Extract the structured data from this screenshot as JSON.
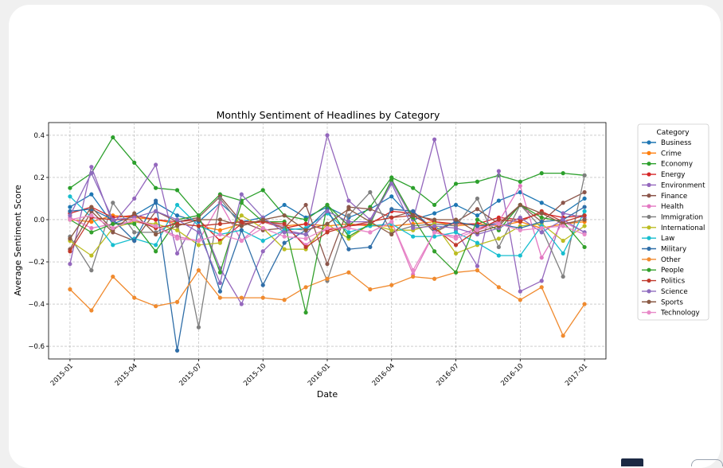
{
  "chart_data": {
    "type": "line",
    "title": "Monthly Sentiment of Headlines by Category",
    "xlabel": "Date",
    "ylabel": "Average Sentiment Score",
    "ylim": [
      -0.66,
      0.46
    ],
    "xlim": [
      "2014-12",
      "2017-02"
    ],
    "yticks": [
      -0.6,
      -0.4,
      -0.2,
      0.0,
      0.2,
      0.4
    ],
    "ytick_labels": [
      "−0.6",
      "−0.4",
      "−0.2",
      "0.0",
      "0.2",
      "0.4"
    ],
    "xticks": [
      "2015-01",
      "2015-04",
      "2015-07",
      "2015-10",
      "2016-01",
      "2016-04",
      "2016-07",
      "2016-10",
      "2017-01"
    ],
    "grid": true,
    "legend": {
      "title": "Category",
      "placement": "right"
    },
    "x": [
      "2015-01",
      "2015-02",
      "2015-03",
      "2015-04",
      "2015-05",
      "2015-06",
      "2015-07",
      "2015-08",
      "2015-09",
      "2015-10",
      "2015-11",
      "2015-12",
      "2016-01",
      "2016-02",
      "2016-03",
      "2016-04",
      "2016-05",
      "2016-06",
      "2016-07",
      "2016-08",
      "2016-09",
      "2016-10",
      "2016-11",
      "2016-12",
      "2017-01"
    ],
    "series": [
      {
        "name": "Business",
        "color": "#1f77b4",
        "values": [
          0.06,
          0.12,
          -0.02,
          0.02,
          0.08,
          0.02,
          -0.01,
          0.08,
          -0.01,
          0.01,
          0.07,
          0.01,
          0.06,
          0.01,
          0.05,
          0.11,
          0.0,
          0.03,
          0.07,
          0.02,
          0.09,
          0.13,
          0.08,
          0.03,
          0.1
        ]
      },
      {
        "name": "Crime",
        "color": "#ff7f0e",
        "values": [
          0.0,
          -0.01,
          0.02,
          0.01,
          0.0,
          -0.02,
          -0.03,
          -0.05,
          -0.02,
          -0.01,
          -0.03,
          -0.02,
          -0.03,
          -0.02,
          -0.03,
          -0.03,
          -0.02,
          -0.01,
          -0.03,
          -0.02,
          -0.03,
          -0.01,
          -0.04,
          -0.02,
          -0.01
        ]
      },
      {
        "name": "Economy",
        "color": "#2ca02c",
        "values": [
          0.15,
          0.22,
          0.39,
          0.27,
          0.15,
          0.14,
          0.02,
          0.12,
          0.09,
          0.14,
          0.02,
          0.0,
          0.07,
          -0.03,
          0.06,
          0.2,
          0.15,
          0.07,
          0.17,
          0.18,
          0.21,
          0.18,
          0.22,
          0.22,
          0.21
        ]
      },
      {
        "name": "Energy",
        "color": "#d62728",
        "values": [
          0.03,
          0.06,
          0.01,
          0.02,
          0.0,
          -0.01,
          0.0,
          -0.1,
          -0.02,
          -0.01,
          -0.04,
          -0.02,
          -0.05,
          -0.03,
          -0.02,
          0.04,
          0.03,
          -0.01,
          -0.02,
          -0.02,
          0.01,
          0.0,
          0.03,
          0.01,
          0.02
        ]
      },
      {
        "name": "Environment",
        "color": "#9467bd",
        "values": [
          -0.21,
          0.25,
          -0.02,
          0.1,
          0.26,
          -0.16,
          0.02,
          -0.23,
          -0.4,
          -0.15,
          -0.05,
          -0.07,
          0.4,
          0.09,
          0.0,
          0.18,
          0.0,
          0.38,
          -0.05,
          -0.22,
          0.23,
          -0.34,
          -0.29,
          0.03,
          0.01
        ]
      },
      {
        "name": "Finance",
        "color": "#8c564b",
        "values": [
          -0.14,
          0.04,
          -0.06,
          -0.1,
          0.04,
          -0.01,
          0.01,
          0.11,
          -0.01,
          -0.05,
          -0.04,
          0.07,
          -0.21,
          0.06,
          0.05,
          0.01,
          0.04,
          -0.06,
          -0.01,
          0.05,
          -0.02,
          0.07,
          -0.01,
          0.08,
          0.13
        ]
      },
      {
        "name": "Health",
        "color": "#e377c2",
        "values": [
          0.01,
          -0.04,
          -0.02,
          -0.01,
          -0.03,
          -0.08,
          -0.1,
          0.08,
          -0.1,
          -0.01,
          -0.03,
          -0.12,
          -0.04,
          -0.04,
          -0.06,
          -0.01,
          -0.26,
          -0.06,
          -0.08,
          -0.04,
          -0.01,
          0.16,
          -0.18,
          -0.01,
          -0.06
        ]
      },
      {
        "name": "Immigration",
        "color": "#7f7f7f",
        "values": [
          -0.08,
          -0.24,
          0.08,
          -0.06,
          -0.06,
          -0.01,
          -0.51,
          0.1,
          -0.03,
          0.0,
          -0.04,
          -0.05,
          -0.29,
          0.02,
          0.13,
          -0.06,
          -0.03,
          -0.02,
          -0.03,
          0.1,
          -0.13,
          0.07,
          -0.04,
          -0.27,
          0.21
        ]
      },
      {
        "name": "International",
        "color": "#bcbd22",
        "values": [
          -0.1,
          -0.17,
          -0.04,
          -0.01,
          -0.02,
          -0.05,
          -0.12,
          -0.11,
          0.02,
          -0.04,
          -0.14,
          -0.14,
          -0.02,
          -0.09,
          -0.02,
          -0.05,
          -0.05,
          -0.02,
          -0.16,
          -0.12,
          -0.09,
          -0.03,
          -0.02,
          -0.1,
          -0.03
        ]
      },
      {
        "name": "Law",
        "color": "#17becf",
        "values": [
          0.11,
          0.01,
          -0.12,
          -0.09,
          -0.12,
          0.07,
          -0.03,
          -0.07,
          -0.05,
          -0.1,
          -0.05,
          -0.04,
          0.03,
          -0.06,
          -0.03,
          -0.02,
          -0.08,
          -0.08,
          -0.06,
          -0.11,
          -0.17,
          -0.17,
          -0.03,
          -0.16,
          0.04
        ]
      },
      {
        "name": "Military",
        "color": "#2f6ea8",
        "values": [
          0.04,
          0.05,
          0.0,
          -0.1,
          0.09,
          -0.62,
          -0.03,
          -0.34,
          -0.05,
          -0.31,
          -0.11,
          -0.05,
          0.05,
          -0.14,
          -0.13,
          0.05,
          0.04,
          -0.05,
          -0.01,
          -0.03,
          -0.02,
          -0.04,
          -0.01,
          0.0,
          0.06
        ]
      },
      {
        "name": "Other",
        "color": "#f08a2e",
        "values": [
          -0.33,
          -0.43,
          -0.27,
          -0.37,
          -0.41,
          -0.39,
          -0.24,
          -0.37,
          -0.37,
          -0.37,
          -0.38,
          -0.32,
          -0.28,
          -0.25,
          -0.33,
          -0.31,
          -0.27,
          -0.28,
          -0.25,
          -0.24,
          -0.32,
          -0.38,
          -0.32,
          -0.55,
          -0.4
        ]
      },
      {
        "name": "People",
        "color": "#33a02c",
        "values": [
          0.0,
          -0.06,
          -0.02,
          -0.02,
          -0.15,
          0.0,
          0.02,
          -0.25,
          0.08,
          -0.01,
          -0.01,
          -0.44,
          0.07,
          -0.08,
          -0.02,
          0.19,
          0.01,
          -0.15,
          -0.25,
          0.0,
          -0.05,
          0.07,
          0.01,
          -0.01,
          -0.13
        ]
      },
      {
        "name": "Politics",
        "color": "#c0392b",
        "values": [
          -0.15,
          0.01,
          0.0,
          0.0,
          -0.04,
          -0.02,
          -0.03,
          -0.02,
          -0.01,
          -0.01,
          -0.02,
          -0.13,
          -0.06,
          -0.03,
          -0.01,
          0.01,
          0.02,
          -0.04,
          -0.12,
          -0.05,
          0.0,
          -0.01,
          0.04,
          -0.01,
          0.02
        ]
      },
      {
        "name": "Science",
        "color": "#8e6bbf",
        "values": [
          0.02,
          0.22,
          0.0,
          0.01,
          0.04,
          0.0,
          -0.06,
          -0.3,
          0.12,
          0.01,
          -0.06,
          -0.07,
          0.04,
          -0.01,
          -0.01,
          0.17,
          -0.04,
          -0.03,
          -0.04,
          -0.07,
          -0.04,
          0.01,
          -0.06,
          0.0,
          -0.06
        ]
      },
      {
        "name": "Sports",
        "color": "#8a5a44",
        "values": [
          -0.09,
          0.06,
          -0.05,
          0.03,
          -0.07,
          -0.03,
          0.0,
          0.0,
          -0.03,
          0.0,
          0.02,
          -0.05,
          -0.02,
          0.05,
          -0.01,
          -0.07,
          0.02,
          0.0,
          0.0,
          -0.06,
          -0.03,
          0.07,
          0.03,
          -0.02,
          0.0
        ]
      },
      {
        "name": "Technology",
        "color": "#e889c8",
        "values": [
          0.0,
          0.02,
          -0.04,
          0.0,
          -0.03,
          -0.09,
          -0.1,
          -0.07,
          -0.1,
          -0.04,
          -0.08,
          -0.09,
          -0.04,
          -0.04,
          -0.06,
          -0.01,
          -0.24,
          -0.06,
          -0.09,
          -0.05,
          -0.02,
          -0.05,
          -0.04,
          -0.03,
          -0.07
        ]
      }
    ]
  }
}
